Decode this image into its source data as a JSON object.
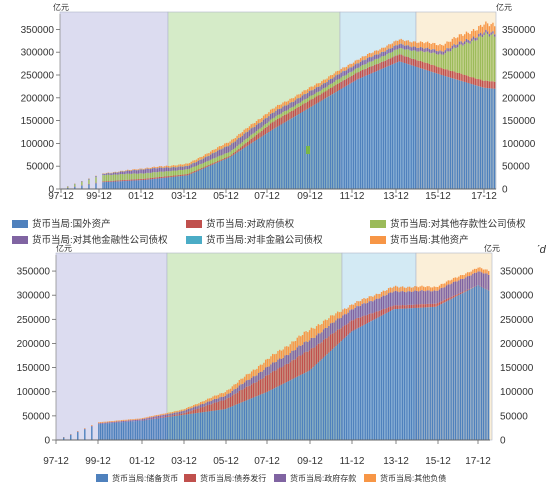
{
  "chart_data": [
    {
      "type": "bar",
      "stacked": true,
      "unit": "亿元",
      "ylim": [
        0,
        375000
      ],
      "yticks": [
        0,
        50000,
        100000,
        150000,
        200000,
        250000,
        300000,
        350000
      ],
      "right_axis": true,
      "x_tick_labels": [
        "97-12",
        "99-12",
        "01-12",
        "03-12",
        "05-12",
        "07-12",
        "09-12",
        "11-12",
        "13-12",
        "15-12",
        "17-12"
      ],
      "period_shading_colors": [
        "#dcdcf0",
        "#d5ebc8",
        "#d3eaf4",
        "#fbefd8"
      ],
      "anchor_dates": [
        "1997-12",
        "1999-12",
        "2001-12",
        "2003-12",
        "2005-12",
        "2007-12",
        "2009-12",
        "2011-12",
        "2013-12",
        "2015-12",
        "2017-12",
        "2018-06"
      ],
      "series": [
        {
          "name": "货币当局:国外资产",
          "color": "#4f81bd",
          "values": [
            0,
            15000,
            20000,
            30000,
            70000,
            130000,
            185000,
            240000,
            280000,
            250000,
            222000,
            220000
          ]
        },
        {
          "name": "货币当局:对政府债权",
          "color": "#c0504d",
          "values": [
            0,
            1600,
            2800,
            2900,
            2900,
            16300,
            15700,
            15400,
            15300,
            15300,
            15300,
            15300
          ]
        },
        {
          "name": "货币当局:对其他存款性公司债权",
          "color": "#9bbb59",
          "values": [
            0,
            14000,
            12000,
            10000,
            9000,
            8000,
            8000,
            10000,
            13000,
            30000,
            100000,
            100000
          ]
        },
        {
          "name": "货币当局:对其他金融性公司债权",
          "color": "#8064a2",
          "values": [
            0,
            2500,
            9000,
            7000,
            15000,
            12000,
            11000,
            10000,
            9000,
            7000,
            6000,
            5000
          ]
        },
        {
          "name": "货币当局:对非金融公司债权",
          "color": "#4bacc6",
          "values": [
            0,
            100,
            100,
            200,
            70,
            50,
            40,
            30,
            25,
            50,
            80,
            80
          ]
        },
        {
          "name": "货币当局:其他资产",
          "color": "#f79646",
          "values": [
            0,
            1000,
            2000,
            5000,
            8000,
            9000,
            8000,
            8000,
            10000,
            14000,
            17000,
            18000
          ]
        }
      ]
    },
    {
      "type": "bar",
      "stacked": true,
      "unit": "亿元",
      "ylim": [
        0,
        375000
      ],
      "yticks": [
        0,
        50000,
        100000,
        150000,
        200000,
        250000,
        300000,
        350000
      ],
      "right_axis": true,
      "x_tick_labels": [
        "97-12",
        "99-12",
        "01-12",
        "03-12",
        "05-12",
        "07-12",
        "09-12",
        "11-12",
        "13-12",
        "15-12",
        "17-12"
      ],
      "period_shading_colors": [
        "#dcdcf0",
        "#d5ebc8",
        "#d3eaf4",
        "#fbefd8"
      ],
      "anchor_dates": [
        "1997-12",
        "1999-12",
        "2001-12",
        "2003-12",
        "2005-12",
        "2007-12",
        "2009-12",
        "2011-12",
        "2013-12",
        "2015-12",
        "2017-12",
        "2018-06"
      ],
      "series": [
        {
          "name": "货币当局:储备货币",
          "color": "#4f81bd",
          "values": [
            0,
            33000,
            40000,
            52000,
            64000,
            100000,
            144000,
            225000,
            271000,
            276000,
            321000,
            310000
          ]
        },
        {
          "name": "货币当局:债券发行",
          "color": "#c0504d",
          "values": [
            0,
            0,
            0,
            3000,
            20000,
            34000,
            42000,
            23000,
            7700,
            6500,
            0,
            500
          ]
        },
        {
          "name": "货币当局:政府存款",
          "color": "#8064a2",
          "values": [
            0,
            1800,
            2800,
            5000,
            8000,
            17000,
            21000,
            23000,
            28600,
            27000,
            28000,
            32000
          ]
        },
        {
          "name": "货币当局:其他负债",
          "color": "#f79646",
          "values": [
            0,
            2000,
            2000,
            3000,
            8000,
            16000,
            21000,
            10000,
            10000,
            8000,
            8000,
            8000
          ]
        }
      ]
    }
  ]
}
